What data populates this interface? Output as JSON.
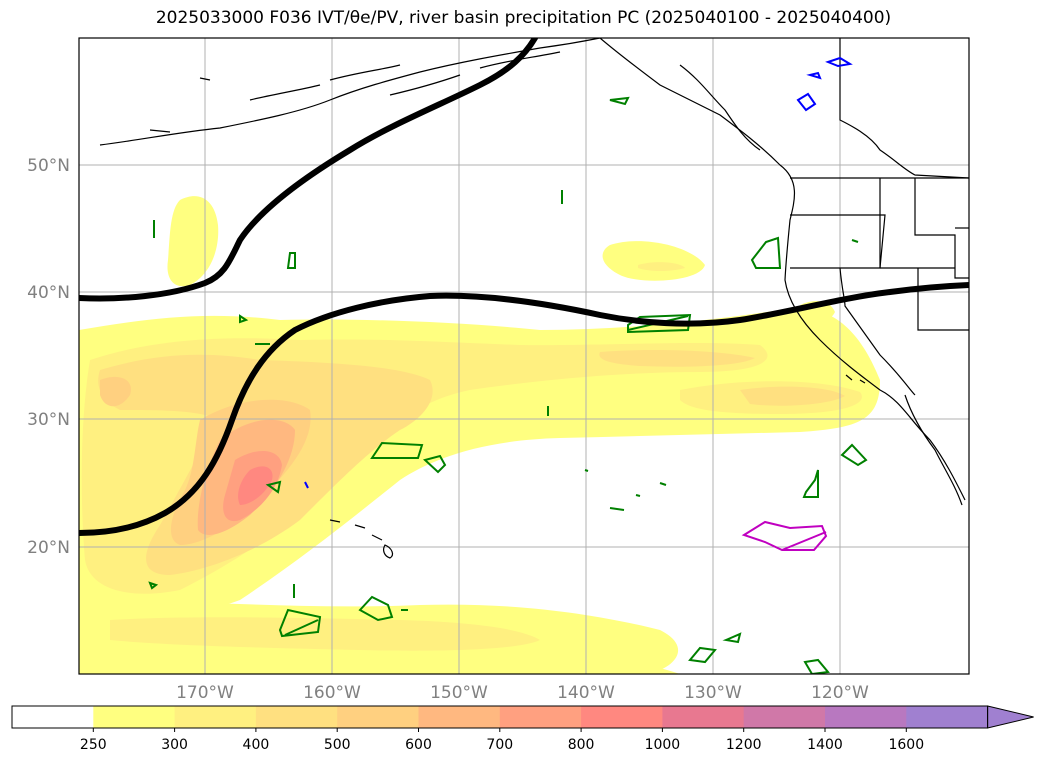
{
  "title": "2025033000 F036 IVT/θe/PV, river basin precipitation PC (2025040100 - 2025040400)",
  "map": {
    "lat_labels": [
      "50°N",
      "40°N",
      "30°N",
      "20°N"
    ],
    "lon_labels": [
      "170°W",
      "160°W",
      "150°W",
      "140°W",
      "130°W",
      "120°W"
    ]
  },
  "colorbar": {
    "levels": [
      "250",
      "300",
      "400",
      "500",
      "600",
      "700",
      "800",
      "1000",
      "1200",
      "1400",
      "1600"
    ],
    "colors": [
      "#ffffff",
      "#ffff80",
      "#fff080",
      "#ffe080",
      "#ffd080",
      "#ffb880",
      "#ffa080",
      "#ff8880",
      "#e87890",
      "#d078a8",
      "#b878c0",
      "#a080d0"
    ],
    "extend": "max"
  },
  "colors": {
    "theta_e_contour": "#000000",
    "coastline": "#000000",
    "green_contours": "#008000",
    "blue_contours": "#0000ff",
    "magenta_contours": "#c000c0",
    "grid": "#b0b0b0"
  }
}
